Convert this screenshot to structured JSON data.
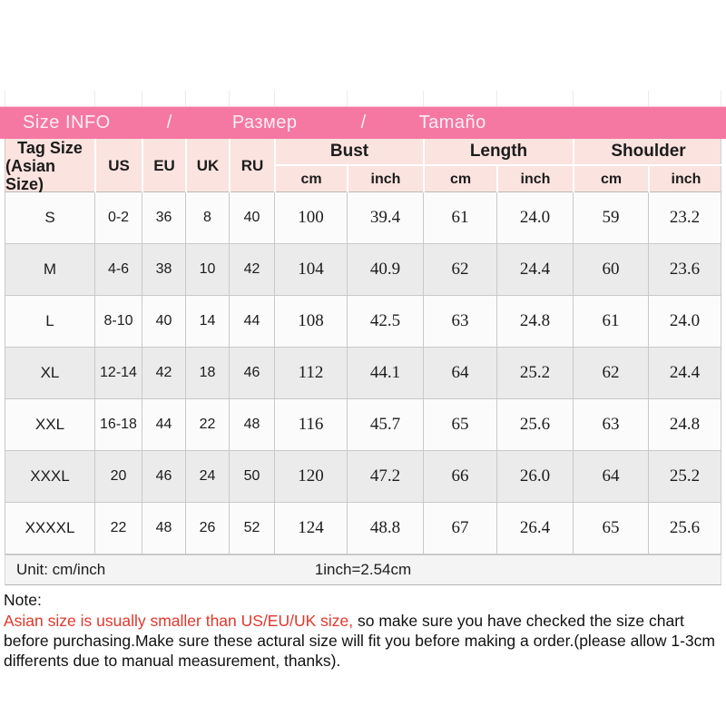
{
  "title_bar": {
    "items": [
      "Size INFO",
      "/",
      "Размер",
      "/",
      "Tamaño"
    ],
    "bg_color": "#f478a2",
    "text_color": "#ffeef5"
  },
  "table": {
    "tag_header_line1": "Tag Size",
    "tag_header_line2": "(Asian Size)",
    "size_cols": [
      "US",
      "EU",
      "UK",
      "RU"
    ],
    "groups": [
      {
        "label": "Bust"
      },
      {
        "label": "Length"
      },
      {
        "label": "Shoulder"
      }
    ],
    "sub_cols": [
      "cm",
      "inch",
      "cm",
      "inch",
      "cm",
      "inch"
    ],
    "header_bg": "#fbe3df",
    "row_alt_bg": "#ebebeb"
  },
  "chart_data": {
    "type": "table",
    "title": "Size INFO / Размер / Tamaño",
    "columns": [
      "Tag Size (Asian Size)",
      "US",
      "EU",
      "UK",
      "RU",
      "Bust cm",
      "Bust inch",
      "Length cm",
      "Length inch",
      "Shoulder cm",
      "Shoulder inch"
    ],
    "rows": [
      [
        "S",
        "0-2",
        "36",
        "8",
        "40",
        "100",
        "39.4",
        "61",
        "24.0",
        "59",
        "23.2"
      ],
      [
        "M",
        "4-6",
        "38",
        "10",
        "42",
        "104",
        "40.9",
        "62",
        "24.4",
        "60",
        "23.6"
      ],
      [
        "L",
        "8-10",
        "40",
        "14",
        "44",
        "108",
        "42.5",
        "63",
        "24.8",
        "61",
        "24.0"
      ],
      [
        "XL",
        "12-14",
        "42",
        "18",
        "46",
        "112",
        "44.1",
        "64",
        "25.2",
        "62",
        "24.4"
      ],
      [
        "XXL",
        "16-18",
        "44",
        "22",
        "48",
        "116",
        "45.7",
        "65",
        "25.6",
        "63",
        "24.8"
      ],
      [
        "XXXL",
        "20",
        "46",
        "24",
        "50",
        "120",
        "47.2",
        "66",
        "26.0",
        "64",
        "25.2"
      ],
      [
        "XXXXL",
        "22",
        "48",
        "26",
        "52",
        "124",
        "48.8",
        "67",
        "26.4",
        "65",
        "25.6"
      ]
    ]
  },
  "footer": {
    "unit_label": "Unit: cm/inch",
    "conversion": "1inch=2.54cm"
  },
  "note": {
    "heading": "Note:",
    "red_text": "Asian size is usually smaller than US/EU/UK size,",
    "rest_text": " so make sure you have checked the size chart before purchasing.Make sure these actural size will fit you before making a order.(please allow 1-3cm differents due to manual measurement, thanks).",
    "red_color": "#df382c"
  }
}
